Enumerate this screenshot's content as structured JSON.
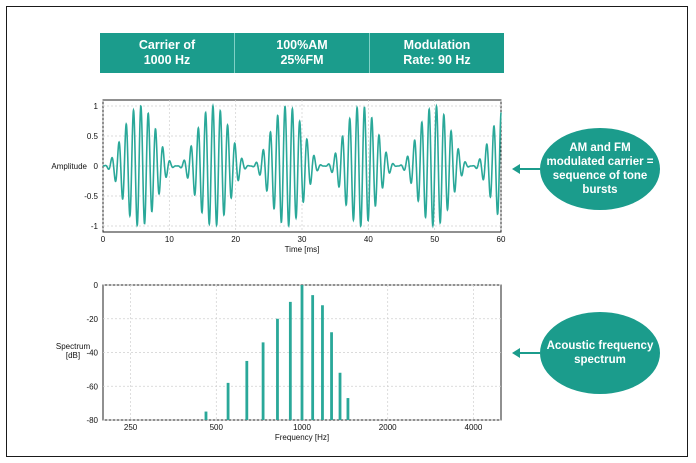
{
  "banner": {
    "cells": [
      {
        "line1": "Carrier of",
        "line2": "1000 Hz"
      },
      {
        "line1": "100%AM",
        "line2": "25%FM"
      },
      {
        "line1": "Modulation",
        "line2": "Rate: 90 Hz"
      }
    ]
  },
  "callouts": {
    "top": [
      "AM and FM",
      "modulated carrier =",
      "sequence of tone",
      "bursts"
    ],
    "bottom": [
      "Acoustic frequency",
      "spectrum"
    ]
  },
  "colors": {
    "accent": "#1b9c8c",
    "trace": "#2aa899"
  },
  "chart_data": [
    {
      "type": "line",
      "ylabel": "Amplitude",
      "xlabel": "Time [ms]",
      "xlim": [
        0,
        60
      ],
      "ylim": [
        -1.1,
        1.1
      ],
      "xticks": [
        0,
        10,
        20,
        30,
        40,
        50,
        60
      ],
      "yticks": [
        1,
        0.5,
        0,
        -0.5,
        -1
      ],
      "ytick_labels": [
        "1",
        "0.5",
        "0",
        "-0.5",
        "-1"
      ],
      "grid": true,
      "signal": {
        "carrier_hz": 1000,
        "modulation_rate_hz": 90,
        "am_percent": 100,
        "fm_percent": 25
      }
    },
    {
      "type": "bar",
      "ylabel": "Spectrum [dB]",
      "xlabel": "Frequency [Hz]",
      "x_scale": "log",
      "xlim": [
        200,
        5000
      ],
      "ylim": [
        -80,
        0
      ],
      "xticks": [
        250,
        500,
        1000,
        2000,
        4000
      ],
      "yticks": [
        0,
        -20,
        -40,
        -60,
        -80
      ],
      "grid": true,
      "x": [
        460,
        550,
        640,
        730,
        820,
        910,
        1000,
        1090,
        1180,
        1270,
        1360,
        1450
      ],
      "values": [
        -75,
        -58,
        -45,
        -34,
        -20,
        -10,
        0,
        -6,
        -12,
        -28,
        -52,
        -67
      ]
    }
  ]
}
